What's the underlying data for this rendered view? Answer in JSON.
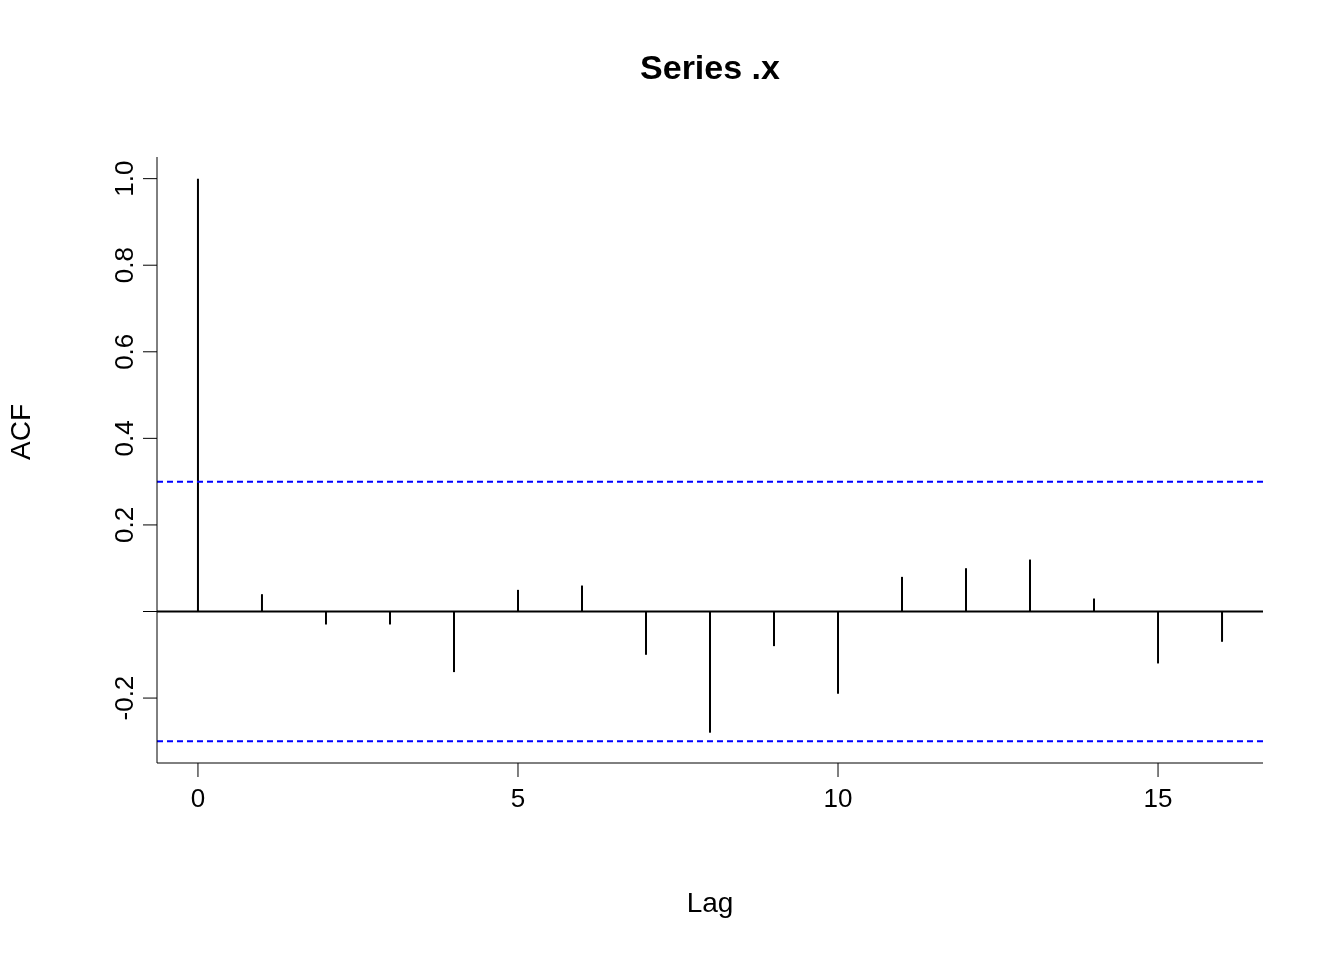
{
  "chart_data": {
    "type": "bar",
    "title": "Series  .x",
    "xlabel": "Lag",
    "ylabel": "ACF",
    "x": [
      0,
      1,
      2,
      3,
      4,
      5,
      6,
      7,
      8,
      9,
      10,
      11,
      12,
      13,
      14,
      15,
      16
    ],
    "series": [
      {
        "color": "#000000",
        "values": [
          1.0,
          0.04,
          -0.03,
          -0.03,
          -0.14,
          0.05,
          0.06,
          -0.1,
          -0.28,
          -0.08,
          -0.19,
          0.08,
          0.1,
          0.12,
          0.03,
          -0.12,
          -0.07
        ]
      }
    ],
    "xlim": [
      -0.64,
      16.64
    ],
    "xticks": [
      0,
      5,
      10,
      15
    ],
    "ylim": [
      -0.35,
      1.05
    ],
    "yticks": [
      {
        "value": -0.2,
        "label": "-0.2"
      },
      {
        "value": 0,
        "label": null
      },
      {
        "value": 0.2,
        "label": "0.2"
      },
      {
        "value": 0.4,
        "label": "0.4"
      },
      {
        "value": 0.6,
        "label": "0.6"
      },
      {
        "value": 0.8,
        "label": "0.8"
      },
      {
        "value": 1,
        "label": "1.0"
      }
    ],
    "ref_lines": [
      {
        "axis": "y",
        "value": 0.3,
        "color": "#0000ff",
        "line_style": "dashed"
      },
      {
        "axis": "y",
        "value": -0.3,
        "color": "#0000ff",
        "line_style": "dashed"
      },
      {
        "axis": "y",
        "value": 0,
        "color": "#000000",
        "line_style": "solid"
      }
    ],
    "grid": false,
    "legend": false
  }
}
